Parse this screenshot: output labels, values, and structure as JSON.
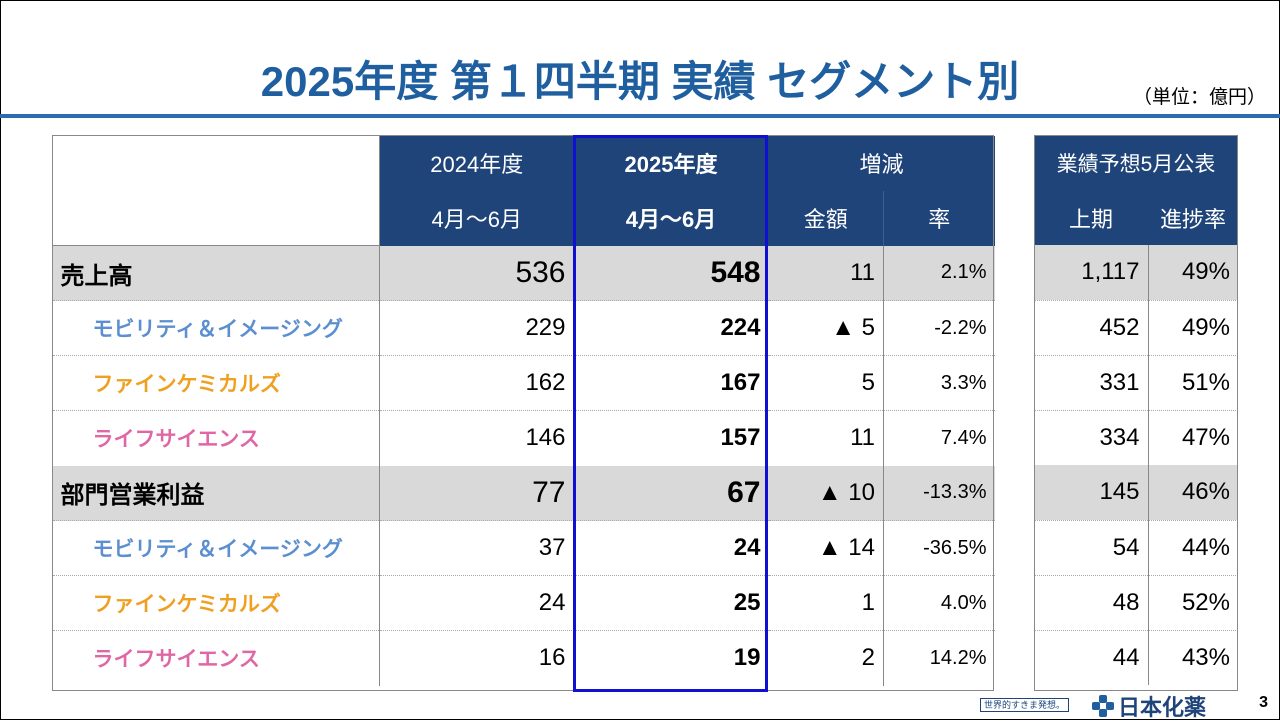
{
  "title": "2025年度 第１四半期 実績 セグメント別",
  "unit": "（単位：億円）",
  "header": {
    "prev_year": "2024年度",
    "prev_period": "4月～6月",
    "curr_year": "2025年度",
    "curr_period": "4月～6月",
    "change": "増減",
    "amount": "金額",
    "rate": "率",
    "forecast": "業績予想5月公表",
    "first_half": "上期",
    "progress": "進捗率"
  },
  "rows": [
    {
      "label": "売上高",
      "prev": "536",
      "curr": "548",
      "amount": "11",
      "rate": "2.1%",
      "fh": "1,117",
      "prog": "49%"
    },
    {
      "label": "モビリティ＆イメージング",
      "prev": "229",
      "curr": "224",
      "amount": "▲ 5",
      "rate": "-2.2%",
      "fh": "452",
      "prog": "49%"
    },
    {
      "label": "ファインケミカルズ",
      "prev": "162",
      "curr": "167",
      "amount": "5",
      "rate": "3.3%",
      "fh": "331",
      "prog": "51%"
    },
    {
      "label": "ライフサイエンス",
      "prev": "146",
      "curr": "157",
      "amount": "11",
      "rate": "7.4%",
      "fh": "334",
      "prog": "47%"
    },
    {
      "label": "部門営業利益",
      "prev": "77",
      "curr": "67",
      "amount": "▲ 10",
      "rate": "-13.3%",
      "fh": "145",
      "prog": "46%"
    },
    {
      "label": "モビリティ＆イメージング",
      "prev": "37",
      "curr": "24",
      "amount": "▲ 14",
      "rate": "-36.5%",
      "fh": "54",
      "prog": "44%"
    },
    {
      "label": "ファインケミカルズ",
      "prev": "24",
      "curr": "25",
      "amount": "1",
      "rate": "4.0%",
      "fh": "48",
      "prog": "52%"
    },
    {
      "label": "ライフサイエンス",
      "prev": "16",
      "curr": "19",
      "amount": "2",
      "rate": "14.2%",
      "fh": "44",
      "prog": "43%"
    }
  ],
  "footer": {
    "tagline": "世界的すきま発想。",
    "company": "日本化薬",
    "page": "3"
  },
  "colors": {
    "title": "#1f5fa0",
    "header_bg": "#1f4479",
    "total_row_bg": "#d9d9d9",
    "highlight_border": "#1010d0",
    "mobility": "#5b8fcf",
    "fine_chemicals": "#f0a020",
    "life_science": "#e066a5"
  }
}
